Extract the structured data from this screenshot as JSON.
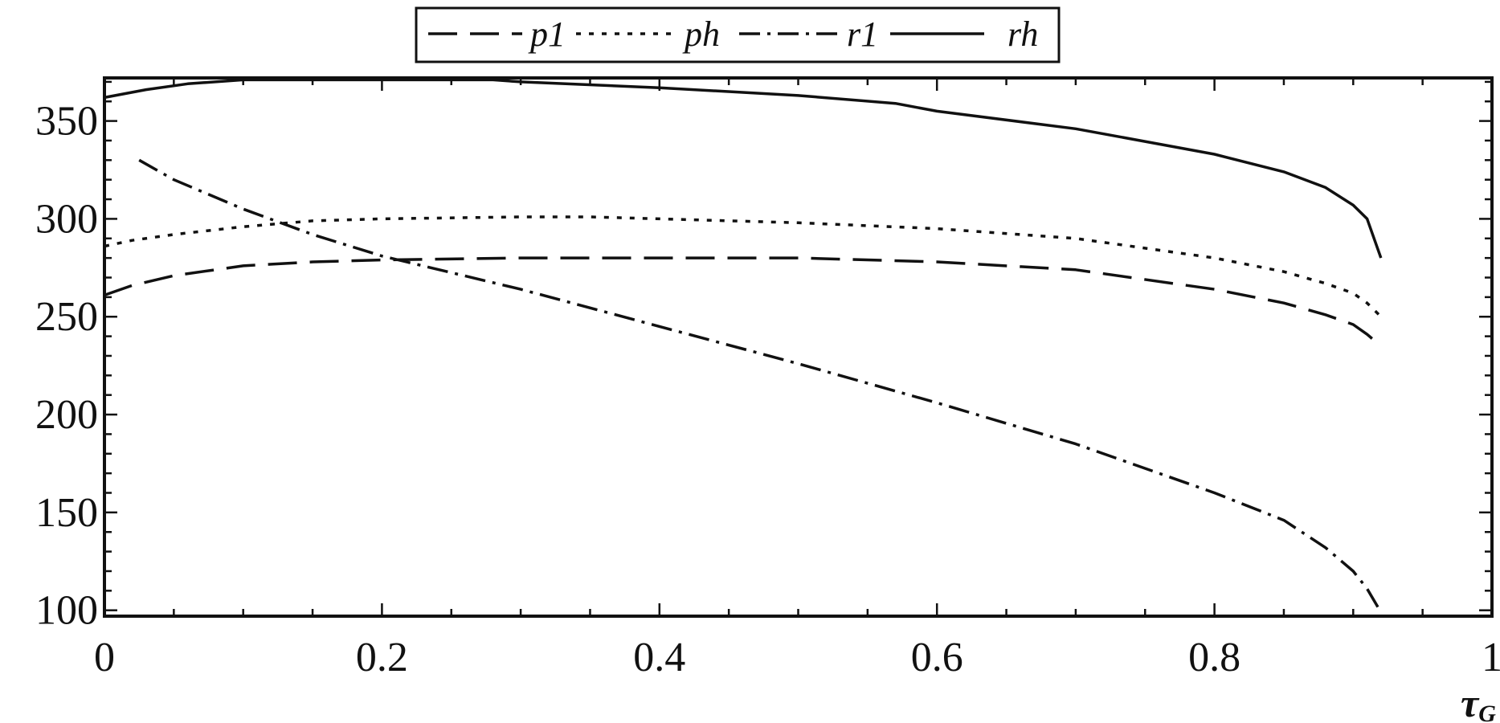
{
  "chart_data": {
    "type": "line",
    "title": "",
    "xlabel": "τ",
    "xlabel_subscript": "G",
    "ylabel": "",
    "xlim": [
      0,
      1
    ],
    "ylim": [
      97,
      372
    ],
    "x_ticks": [
      0,
      0.2,
      0.4,
      0.6,
      0.8,
      1
    ],
    "x_tick_labels": [
      "0",
      "0.2",
      "0.4",
      "0.6",
      "0.8",
      "1"
    ],
    "y_ticks": [
      100,
      150,
      200,
      250,
      300,
      350
    ],
    "y_tick_labels": [
      "100",
      "150",
      "200",
      "250",
      "300",
      "350"
    ],
    "grid": false,
    "legend_position": "top-center",
    "series": [
      {
        "name": "p1",
        "style": "dashed",
        "points": [
          [
            0,
            261
          ],
          [
            0.02,
            266
          ],
          [
            0.05,
            271
          ],
          [
            0.1,
            276
          ],
          [
            0.15,
            278
          ],
          [
            0.2,
            279
          ],
          [
            0.3,
            280
          ],
          [
            0.4,
            280
          ],
          [
            0.5,
            280
          ],
          [
            0.6,
            278
          ],
          [
            0.7,
            274
          ],
          [
            0.8,
            264
          ],
          [
            0.85,
            257
          ],
          [
            0.88,
            251
          ],
          [
            0.9,
            246
          ],
          [
            0.91,
            241
          ],
          [
            0.92,
            235
          ]
        ]
      },
      {
        "name": "ph",
        "style": "dotted",
        "points": [
          [
            0,
            286
          ],
          [
            0.02,
            289
          ],
          [
            0.05,
            292
          ],
          [
            0.1,
            296
          ],
          [
            0.15,
            299
          ],
          [
            0.2,
            300
          ],
          [
            0.3,
            301
          ],
          [
            0.35,
            301
          ],
          [
            0.4,
            300
          ],
          [
            0.5,
            298
          ],
          [
            0.6,
            295
          ],
          [
            0.7,
            290
          ],
          [
            0.8,
            280
          ],
          [
            0.85,
            273
          ],
          [
            0.88,
            267
          ],
          [
            0.9,
            262
          ],
          [
            0.91,
            257
          ],
          [
            0.92,
            250
          ]
        ]
      },
      {
        "name": "r1",
        "style": "dash-dot",
        "points": [
          [
            0.025,
            330
          ],
          [
            0.05,
            320
          ],
          [
            0.1,
            305
          ],
          [
            0.15,
            292
          ],
          [
            0.2,
            281
          ],
          [
            0.3,
            264
          ],
          [
            0.4,
            245
          ],
          [
            0.5,
            226
          ],
          [
            0.6,
            206
          ],
          [
            0.7,
            185
          ],
          [
            0.8,
            160
          ],
          [
            0.85,
            146
          ],
          [
            0.88,
            132
          ],
          [
            0.9,
            120
          ],
          [
            0.91,
            111
          ],
          [
            0.92,
            99
          ]
        ]
      },
      {
        "name": "rh",
        "style": "solid",
        "points": [
          [
            0,
            362
          ],
          [
            0.03,
            366
          ],
          [
            0.06,
            369
          ],
          [
            0.1,
            371
          ],
          [
            0.15,
            371
          ],
          [
            0.2,
            371
          ],
          [
            0.28,
            371
          ],
          [
            0.3,
            370
          ],
          [
            0.4,
            367
          ],
          [
            0.5,
            363
          ],
          [
            0.57,
            359
          ],
          [
            0.6,
            355
          ],
          [
            0.7,
            346
          ],
          [
            0.8,
            333
          ],
          [
            0.85,
            324
          ],
          [
            0.88,
            316
          ],
          [
            0.9,
            307
          ],
          [
            0.91,
            300
          ],
          [
            0.92,
            280
          ]
        ]
      }
    ]
  }
}
